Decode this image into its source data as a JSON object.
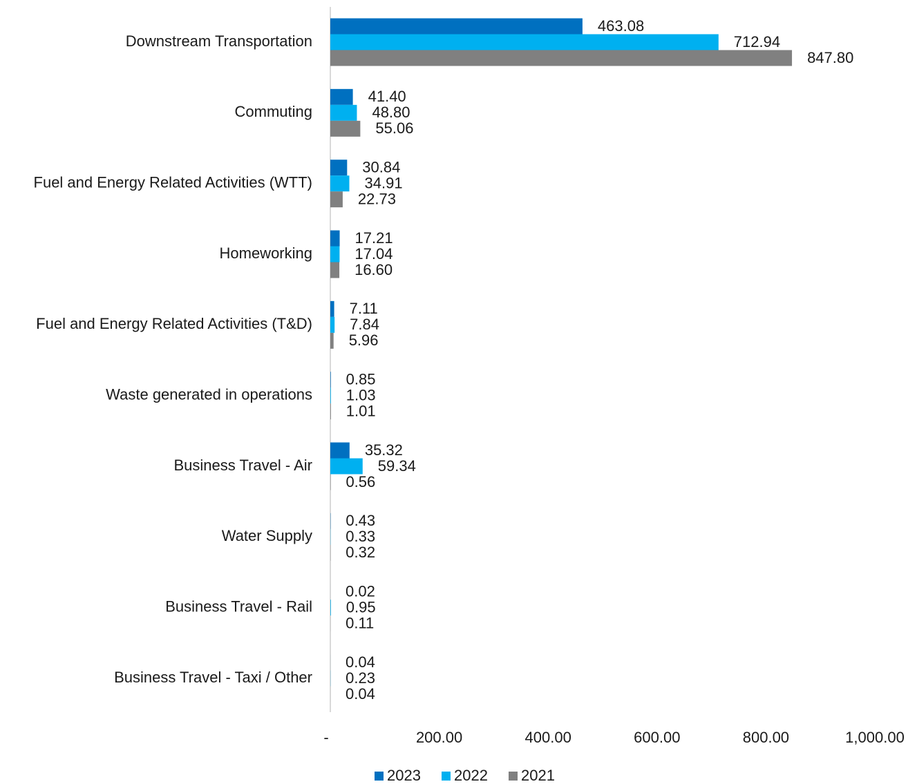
{
  "chart_data": {
    "type": "bar",
    "orientation": "horizontal",
    "categories": [
      "Downstream Transportation",
      "Commuting",
      "Fuel and Energy Related Activities (WTT)",
      "Homeworking",
      "Fuel and Energy Related Activities (T&D)",
      "Waste generated in operations",
      "Business Travel - Air",
      "Water Supply",
      "Business Travel - Rail",
      "Business Travel - Taxi / Other"
    ],
    "series": [
      {
        "name": "2023",
        "color": "#0070c0",
        "values": [
          463.08,
          41.4,
          30.84,
          17.21,
          7.11,
          0.85,
          35.32,
          0.43,
          0.02,
          0.04
        ],
        "value_labels": [
          "463.08",
          "41.40",
          "30.84",
          "17.21",
          "7.11",
          "0.85",
          "35.32",
          "0.43",
          "0.02",
          "0.04"
        ]
      },
      {
        "name": "2022",
        "color": "#00b0f0",
        "values": [
          712.94,
          48.8,
          34.91,
          17.04,
          7.84,
          1.03,
          59.34,
          0.33,
          0.95,
          0.23
        ],
        "value_labels": [
          "712.94",
          "48.80",
          "34.91",
          "17.04",
          "7.84",
          "1.03",
          "59.34",
          "0.33",
          "0.95",
          "0.23"
        ]
      },
      {
        "name": "2021",
        "color": "#808080",
        "values": [
          847.8,
          55.06,
          22.73,
          16.6,
          5.96,
          1.01,
          0.56,
          0.32,
          0.11,
          0.04
        ],
        "value_labels": [
          "847.80",
          "55.06",
          "22.73",
          "16.60",
          "5.96",
          "1.01",
          "0.56",
          "0.32",
          "0.11",
          "0.04"
        ]
      }
    ],
    "xlim": [
      0,
      1000
    ],
    "xticks": [
      {
        "value": 0,
        "label": "-"
      },
      {
        "value": 200,
        "label": "200.00"
      },
      {
        "value": 400,
        "label": "400.00"
      },
      {
        "value": 600,
        "label": "600.00"
      },
      {
        "value": 800,
        "label": "800.00"
      },
      {
        "value": 1000,
        "label": "1,000.00"
      }
    ],
    "grid": false,
    "legend": "bottom"
  }
}
